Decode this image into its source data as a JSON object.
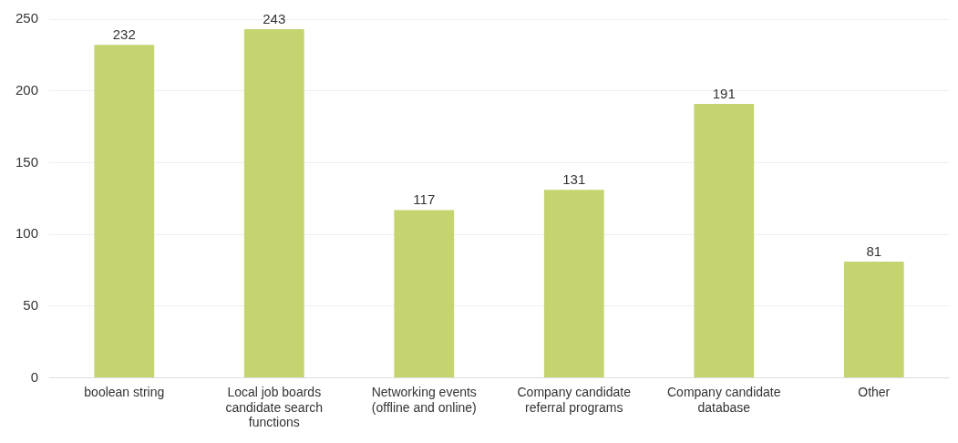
{
  "chart_data": {
    "type": "bar",
    "categories": [
      "boolean string",
      "Local job boards candidate search functions",
      "Networking events (offline and online)",
      "Company candidate referral programs",
      "Company candidate database",
      "Other"
    ],
    "values": [
      232,
      243,
      117,
      131,
      191,
      81
    ],
    "color": "#c5d46f",
    "ylim": [
      0,
      250
    ],
    "yticks": [
      0,
      50,
      100,
      150,
      200,
      250
    ],
    "grid": "y",
    "data_labels": true
  }
}
